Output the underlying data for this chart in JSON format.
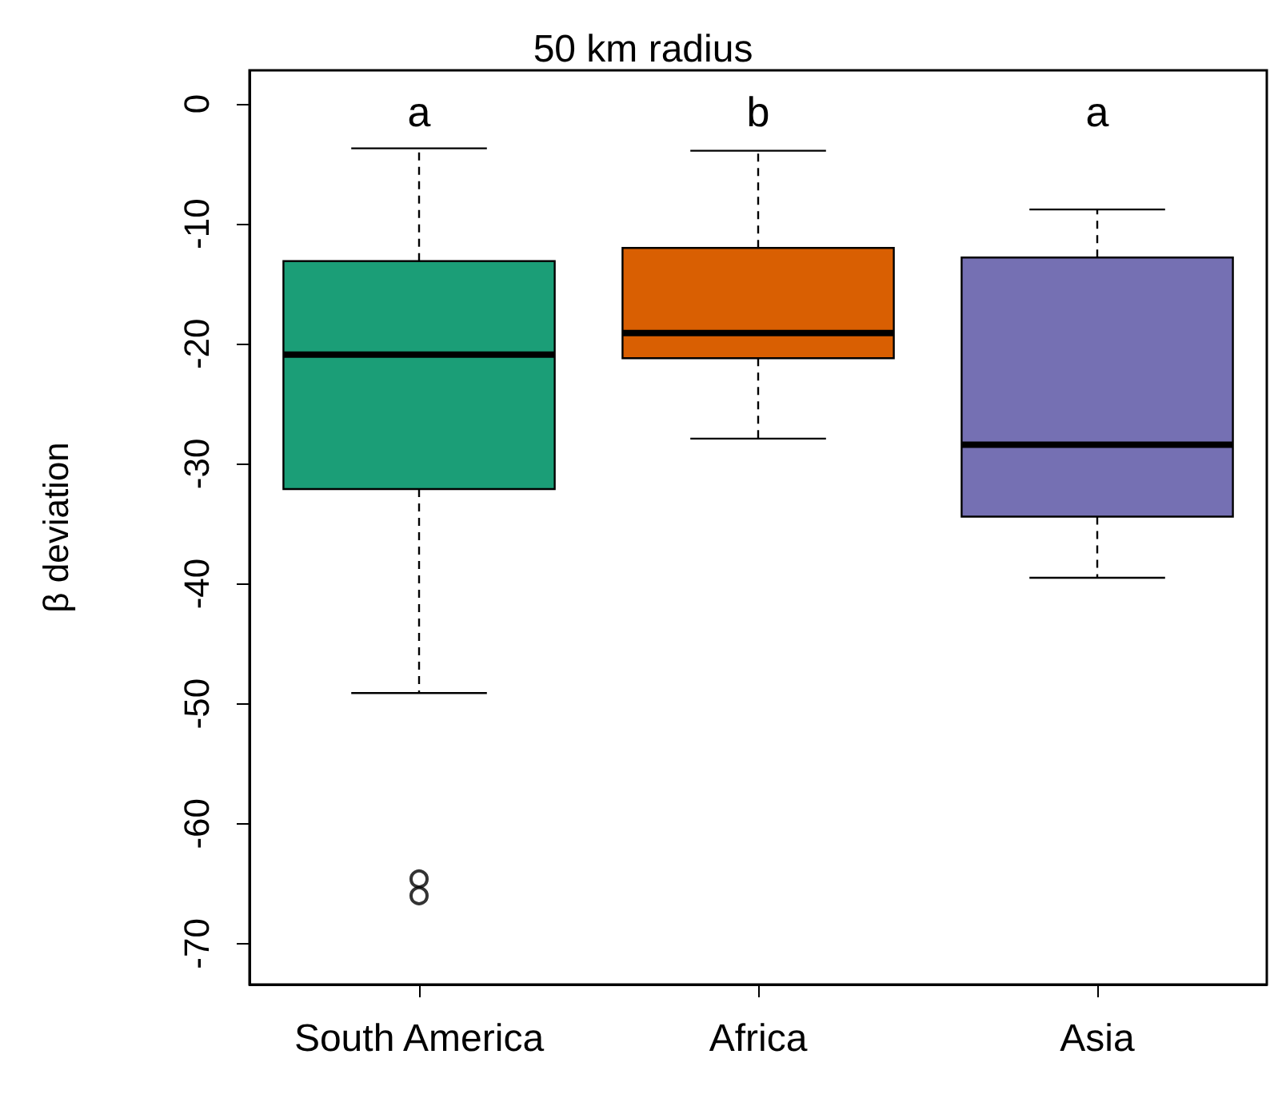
{
  "chart_data": {
    "type": "box",
    "title": "50 km radius",
    "ylabel": "β deviation",
    "categories": [
      "South America",
      "Africa",
      "Asia"
    ],
    "colors": [
      "#1b9e77",
      "#d95f02",
      "#7570b3"
    ],
    "boxes": [
      {
        "low": -49.1,
        "q1": -32.1,
        "median": -20.9,
        "q3": -13.1,
        "high": -3.7,
        "outliers": [
          -64.6,
          -66.0
        ]
      },
      {
        "low": -27.9,
        "q1": -21.2,
        "median": -19.1,
        "q3": -12.0,
        "high": -3.9
      },
      {
        "low": -39.5,
        "q1": -34.4,
        "median": -28.4,
        "q3": -12.8,
        "high": -8.8
      }
    ],
    "ylim": [
      -73.4,
      2.8
    ],
    "yticks": [
      -70,
      -60,
      -50,
      -40,
      -30,
      -20,
      -10,
      0
    ],
    "annotations": [
      "a",
      "b",
      "a"
    ]
  }
}
